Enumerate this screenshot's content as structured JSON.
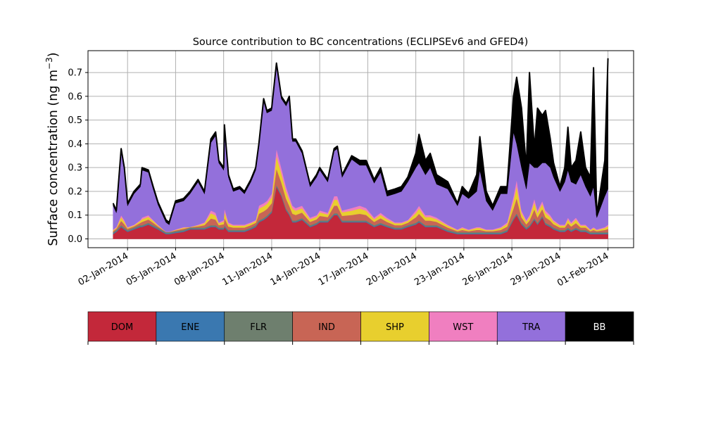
{
  "chart_data": {
    "type": "area",
    "stacked": true,
    "title": "Source contribution to BC concentrations (ECLIPSEv6 and GFED4)",
    "ylabel": "Surface concentration (ng m",
    "ylabel_sup": "−3",
    "ylabel_close": ")",
    "xlabel": "",
    "x_unit": "day of January 2014",
    "xlim": [
      -0.47,
      33.6
    ],
    "ylim": [
      -0.037,
      0.792
    ],
    "grid": true,
    "yticks": [
      {
        "value": 0.0,
        "label": "0.0"
      },
      {
        "value": 0.1,
        "label": "0.1"
      },
      {
        "value": 0.2,
        "label": "0.2"
      },
      {
        "value": 0.3,
        "label": "0.3"
      },
      {
        "value": 0.4,
        "label": "0.4"
      },
      {
        "value": 0.5,
        "label": "0.5"
      },
      {
        "value": 0.6,
        "label": "0.6"
      },
      {
        "value": 0.7,
        "label": "0.7"
      }
    ],
    "xticks": [
      {
        "value": 2,
        "label": "02-Jan-2014"
      },
      {
        "value": 5,
        "label": "05-Jan-2014"
      },
      {
        "value": 8,
        "label": "08-Jan-2014"
      },
      {
        "value": 11,
        "label": "11-Jan-2014"
      },
      {
        "value": 14,
        "label": "14-Jan-2014"
      },
      {
        "value": 17,
        "label": "17-Jan-2014"
      },
      {
        "value": 20,
        "label": "20-Jan-2014"
      },
      {
        "value": 23,
        "label": "23-Jan-2014"
      },
      {
        "value": 26,
        "label": "26-Jan-2014"
      },
      {
        "value": 29,
        "label": "29-Jan-2014"
      },
      {
        "value": 32,
        "label": "01-Feb-2014"
      }
    ],
    "legend_placement": "below",
    "x": [
      1.1,
      1.3,
      1.6,
      1.8,
      2.0,
      2.4,
      2.8,
      2.9,
      3.3,
      3.6,
      3.9,
      4.4,
      4.6,
      5.0,
      5.5,
      5.9,
      6.4,
      6.8,
      7.2,
      7.5,
      7.7,
      8.0,
      8.05,
      8.3,
      8.6,
      9.0,
      9.3,
      9.7,
      10.0,
      10.2,
      10.5,
      10.7,
      11.0,
      11.3,
      11.6,
      11.9,
      12.1,
      12.3,
      12.5,
      12.9,
      13.4,
      13.8,
      14.0,
      14.5,
      14.9,
      15.1,
      15.4,
      16.0,
      16.5,
      16.9,
      17.4,
      17.8,
      18.2,
      18.7,
      19.1,
      19.5,
      20.0,
      20.2,
      20.6,
      20.9,
      21.3,
      22.0,
      22.6,
      22.9,
      23.3,
      23.8,
      24.0,
      24.4,
      24.8,
      25.3,
      25.7,
      26.1,
      26.3,
      26.6,
      26.9,
      27.1,
      27.4,
      27.6,
      27.9,
      28.1,
      28.4,
      28.6,
      29.0,
      29.3,
      29.5,
      29.7,
      30.0,
      30.3,
      30.6,
      30.9,
      31.1,
      31.3,
      31.8,
      32.0
    ],
    "series": [
      {
        "name": "DOM",
        "color": "#c3283a",
        "text_color": "#000000",
        "values": [
          0.02,
          0.03,
          0.05,
          0.04,
          0.03,
          0.04,
          0.05,
          0.05,
          0.06,
          0.05,
          0.04,
          0.02,
          0.02,
          0.025,
          0.03,
          0.04,
          0.04,
          0.04,
          0.05,
          0.05,
          0.04,
          0.04,
          0.05,
          0.03,
          0.03,
          0.03,
          0.03,
          0.04,
          0.05,
          0.07,
          0.08,
          0.09,
          0.11,
          0.22,
          0.18,
          0.12,
          0.1,
          0.07,
          0.07,
          0.08,
          0.05,
          0.06,
          0.07,
          0.07,
          0.1,
          0.1,
          0.07,
          0.07,
          0.07,
          0.07,
          0.05,
          0.06,
          0.05,
          0.04,
          0.04,
          0.05,
          0.06,
          0.07,
          0.05,
          0.05,
          0.05,
          0.03,
          0.02,
          0.02,
          0.02,
          0.02,
          0.02,
          0.02,
          0.02,
          0.02,
          0.03,
          0.08,
          0.1,
          0.06,
          0.04,
          0.05,
          0.08,
          0.06,
          0.09,
          0.06,
          0.05,
          0.04,
          0.03,
          0.03,
          0.04,
          0.03,
          0.04,
          0.03,
          0.03,
          0.02,
          0.02,
          0.02,
          0.02,
          0.02
        ]
      },
      {
        "name": "ENE",
        "color": "#3a78b0",
        "text_color": "#000000",
        "values": 0.003
      },
      {
        "name": "FLR",
        "color": "#6e7f6e",
        "text_color": "#000000",
        "values": 0.005
      },
      {
        "name": "IND",
        "color": "#c86555",
        "text_color": "#000000",
        "values": [
          0.005,
          0.005,
          0.019,
          0.014,
          0.005,
          0.005,
          0.01,
          0.014,
          0.014,
          0.01,
          0.005,
          0.001,
          0.001,
          0.003,
          0.005,
          0.001,
          0.005,
          0.01,
          0.028,
          0.023,
          0.01,
          0.014,
          0.032,
          0.014,
          0.01,
          0.01,
          0.01,
          0.01,
          0.01,
          0.028,
          0.028,
          0.028,
          0.032,
          0.068,
          0.05,
          0.041,
          0.032,
          0.028,
          0.023,
          0.023,
          0.014,
          0.014,
          0.019,
          0.014,
          0.032,
          0.032,
          0.019,
          0.023,
          0.028,
          0.023,
          0.014,
          0.019,
          0.014,
          0.01,
          0.01,
          0.01,
          0.023,
          0.028,
          0.019,
          0.019,
          0.014,
          0.01,
          0.005,
          0.01,
          0.005,
          0.01,
          0.01,
          0.005,
          0.005,
          0.01,
          0.014,
          0.041,
          0.064,
          0.023,
          0.014,
          0.019,
          0.037,
          0.023,
          0.028,
          0.023,
          0.019,
          0.014,
          0.01,
          0.01,
          0.019,
          0.014,
          0.019,
          0.01,
          0.01,
          0.005,
          0.01,
          0.005,
          0.01,
          0.014
        ]
      },
      {
        "name": "SHP",
        "color": "#e8cf2e",
        "text_color": "#000000",
        "values": [
          0.004,
          0.004,
          0.015,
          0.011,
          0.004,
          0.004,
          0.008,
          0.011,
          0.011,
          0.008,
          0.004,
          0.001,
          0.001,
          0.002,
          0.004,
          0.001,
          0.004,
          0.008,
          0.022,
          0.018,
          0.008,
          0.011,
          0.025,
          0.011,
          0.008,
          0.008,
          0.008,
          0.008,
          0.008,
          0.022,
          0.022,
          0.022,
          0.025,
          0.053,
          0.039,
          0.032,
          0.025,
          0.022,
          0.018,
          0.018,
          0.011,
          0.011,
          0.015,
          0.011,
          0.025,
          0.025,
          0.015,
          0.018,
          0.022,
          0.018,
          0.011,
          0.015,
          0.011,
          0.008,
          0.008,
          0.008,
          0.018,
          0.022,
          0.015,
          0.015,
          0.011,
          0.008,
          0.004,
          0.008,
          0.004,
          0.008,
          0.008,
          0.004,
          0.004,
          0.008,
          0.011,
          0.032,
          0.05,
          0.018,
          0.011,
          0.015,
          0.029,
          0.018,
          0.022,
          0.018,
          0.015,
          0.011,
          0.008,
          0.008,
          0.015,
          0.011,
          0.015,
          0.008,
          0.008,
          0.004,
          0.008,
          0.004,
          0.008,
          0.011
        ]
      },
      {
        "name": "WST",
        "color": "#f07fc0",
        "text_color": "#000000",
        "values": [
          0.003,
          0.003,
          0.008,
          0.007,
          0.003,
          0.003,
          0.004,
          0.007,
          0.007,
          0.004,
          0.003,
          0.0,
          0.0,
          0.002,
          0.003,
          0.0,
          0.003,
          0.004,
          0.012,
          0.011,
          0.004,
          0.007,
          0.015,
          0.007,
          0.004,
          0.004,
          0.004,
          0.004,
          0.004,
          0.012,
          0.012,
          0.012,
          0.015,
          0.031,
          0.023,
          0.019,
          0.015,
          0.012,
          0.011,
          0.011,
          0.007,
          0.007,
          0.008,
          0.007,
          0.015,
          0.015,
          0.008,
          0.011,
          0.012,
          0.011,
          0.007,
          0.008,
          0.007,
          0.004,
          0.004,
          0.004,
          0.011,
          0.012,
          0.008,
          0.008,
          0.007,
          0.004,
          0.003,
          0.004,
          0.003,
          0.004,
          0.004,
          0.003,
          0.003,
          0.004,
          0.007,
          0.019,
          0.028,
          0.011,
          0.007,
          0.008,
          0.016,
          0.011,
          0.012,
          0.011,
          0.008,
          0.007,
          0.004,
          0.004,
          0.008,
          0.007,
          0.008,
          0.004,
          0.004,
          0.003,
          0.004,
          0.003,
          0.004,
          0.007
        ]
      },
      {
        "name": "TRA",
        "color": "#9370db",
        "text_color": "#000000",
        "values": [
          0.1,
          0.06,
          0.27,
          0.21,
          0.09,
          0.13,
          0.14,
          0.2,
          0.18,
          0.13,
          0.085,
          0.04,
          0.03,
          0.11,
          0.11,
          0.14,
          0.18,
          0.12,
          0.285,
          0.325,
          0.25,
          0.21,
          0.34,
          0.19,
          0.14,
          0.15,
          0.13,
          0.17,
          0.21,
          0.25,
          0.43,
          0.37,
          0.35,
          0.35,
          0.29,
          0.34,
          0.41,
          0.27,
          0.28,
          0.22,
          0.13,
          0.16,
          0.17,
          0.13,
          0.19,
          0.2,
          0.14,
          0.205,
          0.17,
          0.18,
          0.145,
          0.17,
          0.09,
          0.12,
          0.13,
          0.16,
          0.18,
          0.18,
          0.17,
          0.2,
          0.14,
          0.15,
          0.1,
          0.14,
          0.13,
          0.15,
          0.24,
          0.12,
          0.08,
          0.14,
          0.12,
          0.27,
          0.15,
          0.18,
          0.13,
          0.22,
          0.13,
          0.18,
          0.16,
          0.2,
          0.2,
          0.18,
          0.14,
          0.18,
          0.2,
          0.17,
          0.14,
          0.21,
          0.16,
          0.14,
          0.17,
          0.05,
          0.13,
          0.15
        ]
      },
      {
        "name": "BB",
        "color": "#000000",
        "text_color": "#ffffff",
        "values": [
          0.01,
          0.01,
          0.01,
          0.01,
          0.01,
          0.01,
          0.01,
          0.01,
          0.01,
          0.01,
          0.01,
          0.01,
          0.01,
          0.01,
          0.01,
          0.01,
          0.01,
          0.01,
          0.015,
          0.015,
          0.01,
          0.01,
          0.01,
          0.01,
          0.01,
          0.01,
          0.01,
          0.01,
          0.01,
          0.01,
          0.01,
          0.01,
          0.01,
          0.01,
          0.01,
          0.01,
          0.01,
          0.01,
          0.01,
          0.01,
          0.01,
          0.01,
          0.01,
          0.01,
          0.01,
          0.01,
          0.01,
          0.015,
          0.02,
          0.02,
          0.015,
          0.02,
          0.02,
          0.02,
          0.02,
          0.02,
          0.06,
          0.12,
          0.06,
          0.06,
          0.04,
          0.03,
          0.01,
          0.03,
          0.02,
          0.07,
          0.14,
          0.04,
          0.02,
          0.03,
          0.03,
          0.15,
          0.28,
          0.25,
          0.09,
          0.38,
          0.08,
          0.25,
          0.2,
          0.22,
          0.12,
          0.06,
          0.02,
          0.06,
          0.18,
          0.06,
          0.1,
          0.18,
          0.08,
          0.08,
          0.5,
          0.01,
          0.15,
          0.55
        ]
      }
    ]
  }
}
